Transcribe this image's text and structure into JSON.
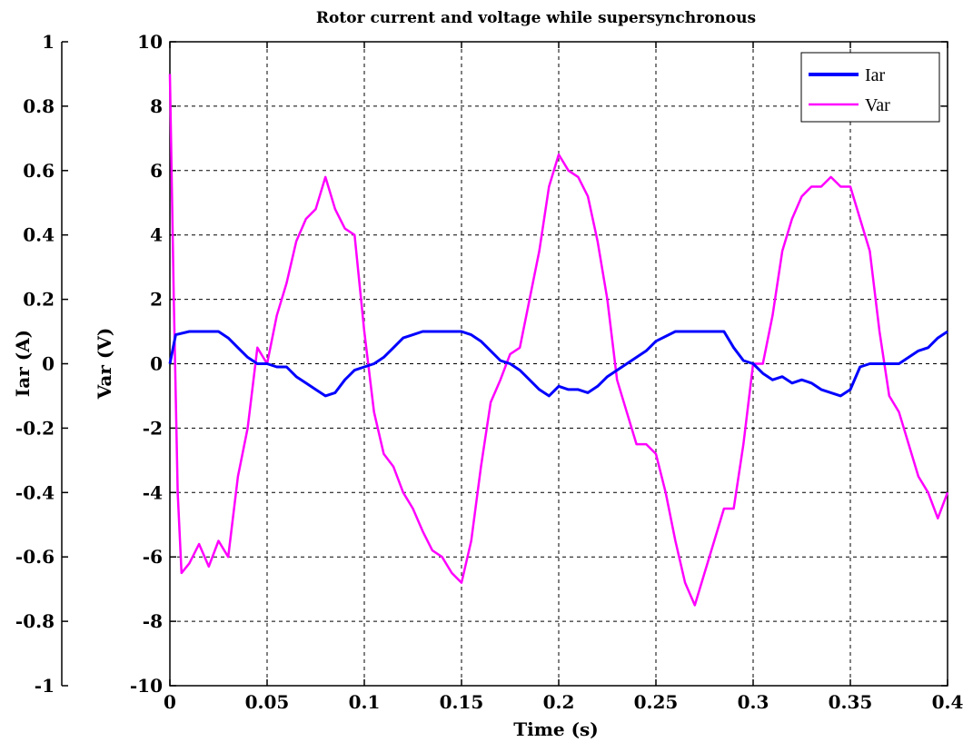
{
  "chart_data": {
    "type": "line",
    "title": "Rotor current and voltage while supersynchronous",
    "xlabel": "Time (s)",
    "ylabel_left_outer": "Iar (A)",
    "ylabel_left_inner": "Var (V)",
    "xlim": [
      0,
      0.4
    ],
    "ylim_current": [
      -1,
      1
    ],
    "ylim_voltage": [
      -10,
      10
    ],
    "grid": true,
    "legend_position": "top-right",
    "x_ticks": [
      "0",
      "0.05",
      "0.1",
      "0.15",
      "0.2",
      "0.25",
      "0.3",
      "0.35",
      "0.4"
    ],
    "y_ticks_current": [
      "1",
      "0.8",
      "0.6",
      "0.4",
      "0.2",
      "0",
      "-0.2",
      "-0.4",
      "-0.6",
      "-0.8",
      "-1"
    ],
    "y_ticks_voltage": [
      "10",
      "8",
      "6",
      "4",
      "2",
      "0",
      "-2",
      "-4",
      "-6",
      "-8",
      "-10"
    ],
    "series": [
      {
        "name": "Iar",
        "color": "#0000ff",
        "axis": "current",
        "x": [
          0,
          0.003,
          0.01,
          0.02,
          0.025,
          0.03,
          0.035,
          0.04,
          0.045,
          0.05,
          0.055,
          0.06,
          0.065,
          0.07,
          0.075,
          0.08,
          0.085,
          0.09,
          0.095,
          0.1,
          0.105,
          0.11,
          0.115,
          0.12,
          0.125,
          0.13,
          0.135,
          0.14,
          0.145,
          0.15,
          0.155,
          0.16,
          0.165,
          0.17,
          0.175,
          0.18,
          0.185,
          0.19,
          0.195,
          0.2,
          0.205,
          0.21,
          0.215,
          0.22,
          0.225,
          0.23,
          0.235,
          0.24,
          0.245,
          0.25,
          0.26,
          0.27,
          0.28,
          0.285,
          0.29,
          0.295,
          0.3,
          0.305,
          0.31,
          0.315,
          0.32,
          0.325,
          0.33,
          0.335,
          0.34,
          0.345,
          0.35,
          0.355,
          0.36,
          0.365,
          0.37,
          0.375,
          0.38,
          0.385,
          0.39,
          0.395,
          0.4
        ],
        "values": [
          0,
          0.09,
          0.1,
          0.1,
          0.1,
          0.08,
          0.05,
          0.02,
          0.0,
          0.0,
          -0.01,
          -0.01,
          -0.04,
          -0.06,
          -0.08,
          -0.1,
          -0.09,
          -0.05,
          -0.02,
          -0.01,
          0.0,
          0.02,
          0.05,
          0.08,
          0.09,
          0.1,
          0.1,
          0.1,
          0.1,
          0.1,
          0.09,
          0.07,
          0.04,
          0.01,
          0.0,
          -0.02,
          -0.05,
          -0.08,
          -0.1,
          -0.07,
          -0.08,
          -0.08,
          -0.09,
          -0.07,
          -0.04,
          -0.02,
          0.0,
          0.02,
          0.04,
          0.07,
          0.1,
          0.1,
          0.1,
          0.1,
          0.05,
          0.01,
          0.0,
          -0.03,
          -0.05,
          -0.04,
          -0.06,
          -0.05,
          -0.06,
          -0.08,
          -0.09,
          -0.1,
          -0.08,
          -0.01,
          0.0,
          0.0,
          0.0,
          0.0,
          0.02,
          0.04,
          0.05,
          0.08,
          0.1
        ]
      },
      {
        "name": "Var",
        "color": "#ff00ff",
        "axis": "voltage",
        "x": [
          0,
          0.002,
          0.004,
          0.006,
          0.01,
          0.015,
          0.02,
          0.025,
          0.03,
          0.035,
          0.04,
          0.045,
          0.05,
          0.055,
          0.06,
          0.065,
          0.07,
          0.075,
          0.08,
          0.085,
          0.09,
          0.095,
          0.1,
          0.105,
          0.11,
          0.115,
          0.12,
          0.125,
          0.13,
          0.135,
          0.14,
          0.145,
          0.15,
          0.155,
          0.16,
          0.165,
          0.17,
          0.175,
          0.18,
          0.185,
          0.19,
          0.195,
          0.2,
          0.205,
          0.21,
          0.215,
          0.22,
          0.225,
          0.23,
          0.235,
          0.24,
          0.245,
          0.25,
          0.255,
          0.26,
          0.265,
          0.27,
          0.275,
          0.28,
          0.285,
          0.29,
          0.295,
          0.3,
          0.305,
          0.31,
          0.315,
          0.32,
          0.325,
          0.33,
          0.335,
          0.34,
          0.345,
          0.35,
          0.355,
          0.36,
          0.365,
          0.37,
          0.375,
          0.38,
          0.385,
          0.39,
          0.395,
          0.4
        ],
        "values": [
          9,
          2,
          -4,
          -6.5,
          -6.2,
          -5.6,
          -6.3,
          -5.5,
          -6,
          -3.5,
          -2,
          0.5,
          0,
          1.5,
          2.5,
          3.8,
          4.5,
          4.8,
          5.8,
          4.8,
          4.2,
          4,
          1,
          -1.5,
          -2.8,
          -3.2,
          -4,
          -4.5,
          -5.2,
          -5.8,
          -6,
          -6.5,
          -6.8,
          -5.5,
          -3.2,
          -1.2,
          -0.5,
          0.3,
          0.5,
          2,
          3.5,
          5.5,
          6.5,
          6,
          5.8,
          5.2,
          3.8,
          2,
          -0.5,
          -1.5,
          -2.5,
          -2.5,
          -2.8,
          -4,
          -5.5,
          -6.8,
          -7.5,
          -6.5,
          -5.5,
          -4.5,
          -4.5,
          -2.5,
          0,
          0,
          1.5,
          3.5,
          4.5,
          5.2,
          5.5,
          5.5,
          5.8,
          5.5,
          5.5,
          4.5,
          3.5,
          1,
          -1,
          -1.5,
          -2.5,
          -3.5,
          -4,
          -4.8,
          -4
        ]
      }
    ]
  }
}
